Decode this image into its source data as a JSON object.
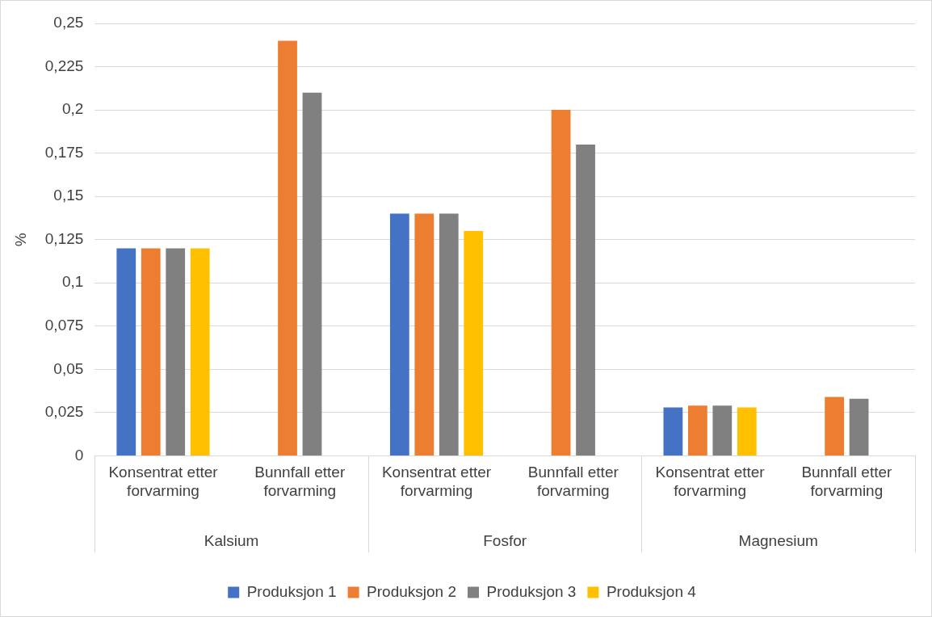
{
  "chart_data": {
    "type": "bar",
    "ylabel": "%",
    "categories": [
      "Konsentrat etter forvarming",
      "Bunnfall etter forvarming",
      "Konsentrat etter forvarming",
      "Bunnfall etter forvarming",
      "Konsentrat etter forvarming",
      "Bunnfall etter forvarming"
    ],
    "annotations": [
      "Kalsium",
      "Fosfor",
      "Magnesium"
    ],
    "series": [
      {
        "name": "Produksjon 1",
        "color": "#4472c4",
        "values": [
          0.12,
          null,
          0.14,
          null,
          0.028,
          null
        ]
      },
      {
        "name": "Produksjon 2",
        "color": "#ed7d31",
        "values": [
          0.12,
          0.24,
          0.14,
          0.2,
          0.029,
          0.034
        ]
      },
      {
        "name": "Produksjon 3",
        "color": "#808080",
        "values": [
          0.12,
          0.21,
          0.14,
          0.18,
          0.029,
          0.033
        ]
      },
      {
        "name": "Produksjon 4",
        "color": "#ffc000",
        "values": [
          0.12,
          null,
          0.13,
          null,
          0.028,
          null
        ]
      }
    ],
    "ylim": [
      0,
      0.25
    ],
    "yticks": [
      0,
      {
        "value": 0.025,
        "label": "0,025"
      },
      {
        "value": 0.05,
        "label": "0,05"
      },
      {
        "value": 0.075,
        "label": "0,075"
      },
      {
        "value": 0.1,
        "label": "0,1"
      },
      {
        "value": 0.125,
        "label": "0,125"
      },
      {
        "value": 0.15,
        "label": "0,15"
      },
      {
        "value": 0.175,
        "label": "0,175"
      },
      {
        "value": 0.2,
        "label": "0,2"
      },
      {
        "value": 0.225,
        "label": "0,225"
      },
      {
        "value": 0.25,
        "label": "0,25"
      }
    ],
    "grid": "y",
    "legend": "bottom"
  }
}
